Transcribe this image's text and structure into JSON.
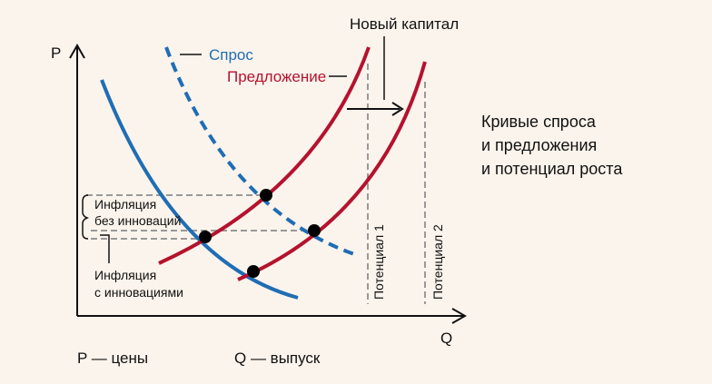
{
  "axes": {
    "y_label": "P",
    "x_label": "Q"
  },
  "legend": {
    "demand": "Спрос",
    "supply": "Предложение",
    "new_capital": "Новый капитал"
  },
  "annotations": {
    "inflation_without_line1": "Инфляция",
    "inflation_without_line2": "без инноваций",
    "inflation_with_line1": "Инфляция",
    "inflation_with_line2": "с инновациями",
    "potential1": "Потенциал 1",
    "potential2": "Потенциал 2"
  },
  "caption": {
    "line1": "Кривые спроса",
    "line2": "и предложения",
    "line3": "и потенциал роста"
  },
  "footnotes": {
    "p": "P — цены",
    "q": "Q — выпуск"
  },
  "colors": {
    "demand": "#1f6db5",
    "supply": "#b5122e",
    "guide": "#999999",
    "background": "#fbf4ec"
  }
}
